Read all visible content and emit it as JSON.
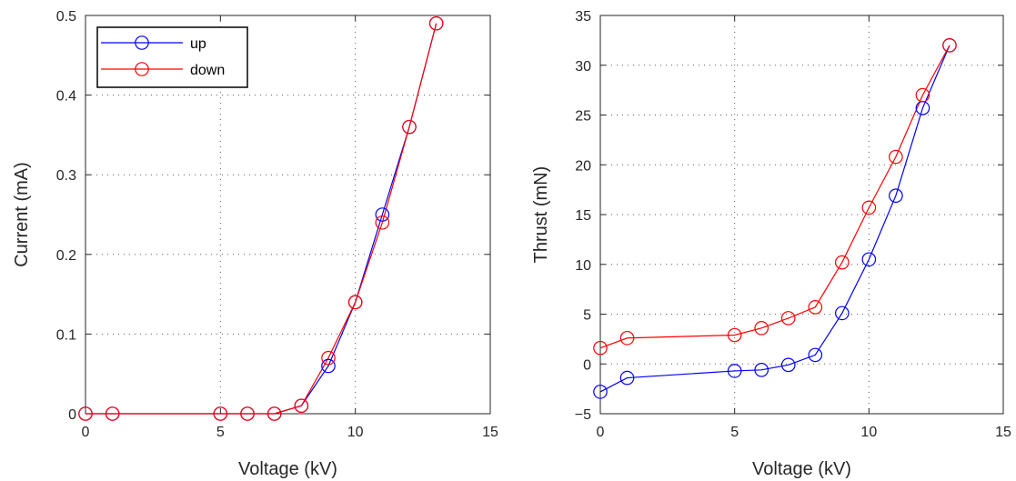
{
  "chart_data": [
    {
      "type": "line",
      "xlabel": "Voltage (kV)",
      "ylabel": "Current (mA)",
      "xlim": [
        0,
        15
      ],
      "ylim": [
        0,
        0.5
      ],
      "xticks": [
        0,
        5,
        10,
        15
      ],
      "yticks": [
        0,
        0.1,
        0.2,
        0.3,
        0.4,
        0.5
      ],
      "grid": true,
      "legend_position": "top-left",
      "series": [
        {
          "name": "up",
          "color": "#0000ff",
          "marker": "circle",
          "x": [
            0,
            1,
            5,
            6,
            7,
            8,
            9,
            10,
            11,
            12,
            13
          ],
          "y": [
            0,
            0,
            0,
            0,
            0,
            0.01,
            0.06,
            0.14,
            0.25,
            0.36,
            0.49
          ]
        },
        {
          "name": "down",
          "color": "#ff0000",
          "marker": "circle",
          "x": [
            0,
            1,
            5,
            6,
            7,
            8,
            9,
            10,
            11,
            12,
            13
          ],
          "y": [
            0,
            0,
            0,
            0,
            0,
            0.01,
            0.07,
            0.14,
            0.24,
            0.36,
            0.49
          ]
        }
      ]
    },
    {
      "type": "line",
      "xlabel": "Voltage (kV)",
      "ylabel": "Thrust (mN)",
      "xlim": [
        0,
        15
      ],
      "ylim": [
        -5,
        35
      ],
      "xticks": [
        0,
        5,
        10,
        15
      ],
      "yticks": [
        -5,
        0,
        5,
        10,
        15,
        20,
        25,
        30,
        35
      ],
      "ytick_labels": [
        "−5",
        "0",
        "5",
        "10",
        "15",
        "20",
        "25",
        "30",
        "35"
      ],
      "grid": true,
      "series": [
        {
          "name": "up",
          "color": "#0000ff",
          "marker": "circle",
          "x": [
            0,
            1,
            5,
            6,
            7,
            8,
            9,
            10,
            11,
            12,
            13
          ],
          "y": [
            -2.8,
            -1.4,
            -0.7,
            -0.6,
            -0.1,
            0.9,
            5.1,
            10.5,
            16.9,
            25.7,
            32.0
          ]
        },
        {
          "name": "down",
          "color": "#ff0000",
          "marker": "circle",
          "x": [
            0,
            1,
            5,
            6,
            7,
            8,
            9,
            10,
            11,
            12,
            13
          ],
          "y": [
            1.6,
            2.6,
            2.9,
            3.6,
            4.6,
            5.7,
            10.2,
            15.7,
            20.8,
            27.0,
            32.0
          ]
        }
      ]
    }
  ]
}
